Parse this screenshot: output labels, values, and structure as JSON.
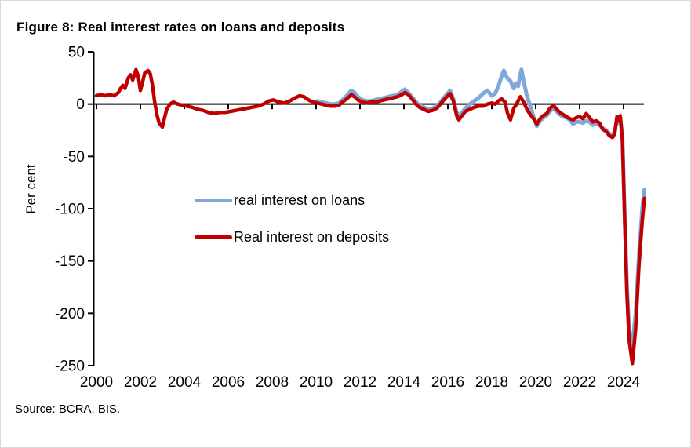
{
  "title": "Figure 8: Real interest rates on loans and deposits",
  "source_note": "Source: BCRA, BIS.",
  "colors": {
    "loans_line": "#7FA7DA",
    "deposits_line": "#C00000",
    "axis": "#000000"
  },
  "chart_data": {
    "type": "line",
    "title": "Figure 8: Real interest rates on loans and deposits",
    "xlabel": "",
    "ylabel": "Per cent",
    "ylim": [
      -250,
      50
    ],
    "ytick_interval": 50,
    "yticks": [
      50,
      0,
      -50,
      -100,
      -150,
      -200,
      -250
    ],
    "xlim": [
      1999.85,
      2024.95
    ],
    "xticks": [
      2000,
      2002,
      2004,
      2006,
      2008,
      2010,
      2012,
      2014,
      2016,
      2018,
      2020,
      2022,
      2024
    ],
    "grid": false,
    "legend_position": "inside-center-left",
    "x_axis_crosses_at": 0,
    "series": [
      {
        "name": "real interest on loans",
        "color": "#7FA7DA",
        "points": [
          [
            2010.05,
            3
          ],
          [
            2010.25,
            2
          ],
          [
            2010.45,
            1
          ],
          [
            2010.65,
            0
          ],
          [
            2010.85,
            0
          ],
          [
            2011.05,
            1
          ],
          [
            2011.2,
            4
          ],
          [
            2011.4,
            8
          ],
          [
            2011.6,
            13
          ],
          [
            2011.75,
            11
          ],
          [
            2011.9,
            7
          ],
          [
            2012.1,
            4
          ],
          [
            2012.3,
            3
          ],
          [
            2012.5,
            3
          ],
          [
            2012.7,
            4
          ],
          [
            2012.9,
            5
          ],
          [
            2013.1,
            6
          ],
          [
            2013.3,
            7
          ],
          [
            2013.5,
            8
          ],
          [
            2013.7,
            9
          ],
          [
            2013.9,
            12
          ],
          [
            2014.05,
            14
          ],
          [
            2014.2,
            11
          ],
          [
            2014.4,
            6
          ],
          [
            2014.55,
            2
          ],
          [
            2014.7,
            -1
          ],
          [
            2014.9,
            -3
          ],
          [
            2015.1,
            -5
          ],
          [
            2015.3,
            -4
          ],
          [
            2015.5,
            -2
          ],
          [
            2015.7,
            3
          ],
          [
            2015.9,
            8
          ],
          [
            2016.1,
            13
          ],
          [
            2016.25,
            5
          ],
          [
            2016.4,
            -8
          ],
          [
            2016.5,
            -11
          ],
          [
            2016.65,
            -8
          ],
          [
            2016.8,
            -4
          ],
          [
            2017.0,
            0
          ],
          [
            2017.2,
            3
          ],
          [
            2017.4,
            6
          ],
          [
            2017.6,
            10
          ],
          [
            2017.8,
            13
          ],
          [
            2018.0,
            8
          ],
          [
            2018.15,
            10
          ],
          [
            2018.3,
            17
          ],
          [
            2018.45,
            27
          ],
          [
            2018.55,
            32
          ],
          [
            2018.7,
            25
          ],
          [
            2018.85,
            22
          ],
          [
            2019.0,
            15
          ],
          [
            2019.1,
            20
          ],
          [
            2019.2,
            17
          ],
          [
            2019.35,
            33
          ],
          [
            2019.45,
            22
          ],
          [
            2019.6,
            8
          ],
          [
            2019.75,
            -2
          ],
          [
            2019.9,
            -12
          ],
          [
            2020.05,
            -21
          ],
          [
            2020.2,
            -16
          ],
          [
            2020.35,
            -13
          ],
          [
            2020.5,
            -11
          ],
          [
            2020.65,
            -7
          ],
          [
            2020.8,
            -4
          ],
          [
            2020.95,
            -7
          ],
          [
            2021.1,
            -10
          ],
          [
            2021.25,
            -12
          ],
          [
            2021.4,
            -13
          ],
          [
            2021.55,
            -15
          ],
          [
            2021.7,
            -19
          ],
          [
            2021.85,
            -17
          ],
          [
            2022.0,
            -17
          ],
          [
            2022.15,
            -18
          ],
          [
            2022.3,
            -16
          ],
          [
            2022.45,
            -17
          ],
          [
            2022.6,
            -20
          ],
          [
            2022.75,
            -18
          ],
          [
            2022.9,
            -20
          ],
          [
            2023.05,
            -23
          ],
          [
            2023.2,
            -25
          ],
          [
            2023.35,
            -28
          ],
          [
            2023.5,
            -30
          ],
          [
            2023.6,
            -26
          ],
          [
            2023.7,
            -14
          ],
          [
            2023.78,
            -18
          ],
          [
            2023.85,
            -13
          ],
          [
            2023.95,
            -32
          ],
          [
            2024.05,
            -105
          ],
          [
            2024.15,
            -172
          ],
          [
            2024.25,
            -215
          ],
          [
            2024.4,
            -232
          ],
          [
            2024.55,
            -200
          ],
          [
            2024.7,
            -145
          ],
          [
            2024.85,
            -100
          ],
          [
            2024.95,
            -82
          ]
        ]
      },
      {
        "name": "Real interest on deposits",
        "color": "#C00000",
        "points": [
          [
            2000.0,
            8
          ],
          [
            2000.2,
            9
          ],
          [
            2000.4,
            8
          ],
          [
            2000.6,
            9
          ],
          [
            2000.8,
            8
          ],
          [
            2001.0,
            11
          ],
          [
            2001.1,
            15
          ],
          [
            2001.2,
            18
          ],
          [
            2001.3,
            15
          ],
          [
            2001.45,
            25
          ],
          [
            2001.55,
            28
          ],
          [
            2001.65,
            23
          ],
          [
            2001.8,
            33
          ],
          [
            2001.9,
            27
          ],
          [
            2002.0,
            13
          ],
          [
            2002.1,
            21
          ],
          [
            2002.2,
            30
          ],
          [
            2002.35,
            32
          ],
          [
            2002.45,
            29
          ],
          [
            2002.55,
            18
          ],
          [
            2002.65,
            2
          ],
          [
            2002.75,
            -10
          ],
          [
            2002.85,
            -18
          ],
          [
            2003.0,
            -22
          ],
          [
            2003.1,
            -13
          ],
          [
            2003.2,
            -5
          ],
          [
            2003.35,
            0
          ],
          [
            2003.5,
            2
          ],
          [
            2003.7,
            0
          ],
          [
            2003.9,
            -1
          ],
          [
            2004.1,
            -2
          ],
          [
            2004.35,
            -3
          ],
          [
            2004.6,
            -5
          ],
          [
            2004.85,
            -6
          ],
          [
            2005.1,
            -8
          ],
          [
            2005.35,
            -9
          ],
          [
            2005.6,
            -8
          ],
          [
            2005.85,
            -8
          ],
          [
            2006.1,
            -7
          ],
          [
            2006.35,
            -6
          ],
          [
            2006.6,
            -5
          ],
          [
            2006.85,
            -4
          ],
          [
            2007.1,
            -3
          ],
          [
            2007.35,
            -2
          ],
          [
            2007.6,
            0
          ],
          [
            2007.85,
            3
          ],
          [
            2008.05,
            4
          ],
          [
            2008.3,
            2
          ],
          [
            2008.55,
            1
          ],
          [
            2008.8,
            3
          ],
          [
            2009.05,
            6
          ],
          [
            2009.25,
            8
          ],
          [
            2009.45,
            7
          ],
          [
            2009.65,
            4
          ],
          [
            2009.85,
            2
          ],
          [
            2010.05,
            1
          ],
          [
            2010.25,
            0
          ],
          [
            2010.45,
            -1
          ],
          [
            2010.65,
            -2
          ],
          [
            2010.85,
            -2
          ],
          [
            2011.05,
            -1
          ],
          [
            2011.2,
            2
          ],
          [
            2011.4,
            5
          ],
          [
            2011.6,
            9
          ],
          [
            2011.75,
            7
          ],
          [
            2011.9,
            4
          ],
          [
            2012.1,
            2
          ],
          [
            2012.3,
            1
          ],
          [
            2012.5,
            2
          ],
          [
            2012.7,
            2
          ],
          [
            2012.9,
            3
          ],
          [
            2013.1,
            4
          ],
          [
            2013.3,
            5
          ],
          [
            2013.5,
            6
          ],
          [
            2013.7,
            7
          ],
          [
            2013.9,
            9
          ],
          [
            2014.05,
            11
          ],
          [
            2014.2,
            9
          ],
          [
            2014.4,
            4
          ],
          [
            2014.55,
            0
          ],
          [
            2014.7,
            -3
          ],
          [
            2014.9,
            -5
          ],
          [
            2015.1,
            -7
          ],
          [
            2015.3,
            -6
          ],
          [
            2015.5,
            -4
          ],
          [
            2015.7,
            1
          ],
          [
            2015.9,
            6
          ],
          [
            2016.1,
            10
          ],
          [
            2016.25,
            3
          ],
          [
            2016.4,
            -11
          ],
          [
            2016.5,
            -15
          ],
          [
            2016.65,
            -11
          ],
          [
            2016.8,
            -7
          ],
          [
            2017.0,
            -5
          ],
          [
            2017.2,
            -3
          ],
          [
            2017.4,
            -2
          ],
          [
            2017.6,
            -2
          ],
          [
            2017.8,
            0
          ],
          [
            2018.0,
            1
          ],
          [
            2018.15,
            0
          ],
          [
            2018.3,
            3
          ],
          [
            2018.45,
            5
          ],
          [
            2018.6,
            2
          ],
          [
            2018.72,
            -9
          ],
          [
            2018.85,
            -15
          ],
          [
            2019.0,
            -4
          ],
          [
            2019.1,
            -1
          ],
          [
            2019.2,
            3
          ],
          [
            2019.3,
            7
          ],
          [
            2019.45,
            2
          ],
          [
            2019.6,
            -5
          ],
          [
            2019.75,
            -10
          ],
          [
            2019.9,
            -14
          ],
          [
            2020.05,
            -19
          ],
          [
            2020.2,
            -14
          ],
          [
            2020.35,
            -11
          ],
          [
            2020.5,
            -9
          ],
          [
            2020.65,
            -4
          ],
          [
            2020.8,
            -1
          ],
          [
            2020.95,
            -5
          ],
          [
            2021.1,
            -8
          ],
          [
            2021.25,
            -10
          ],
          [
            2021.4,
            -12
          ],
          [
            2021.55,
            -14
          ],
          [
            2021.7,
            -15
          ],
          [
            2021.85,
            -13
          ],
          [
            2022.0,
            -12
          ],
          [
            2022.15,
            -14
          ],
          [
            2022.3,
            -9
          ],
          [
            2022.45,
            -13
          ],
          [
            2022.6,
            -17
          ],
          [
            2022.75,
            -16
          ],
          [
            2022.9,
            -18
          ],
          [
            2023.05,
            -24
          ],
          [
            2023.2,
            -26
          ],
          [
            2023.35,
            -30
          ],
          [
            2023.5,
            -32
          ],
          [
            2023.6,
            -28
          ],
          [
            2023.7,
            -12
          ],
          [
            2023.78,
            -16
          ],
          [
            2023.85,
            -11
          ],
          [
            2023.95,
            -35
          ],
          [
            2024.05,
            -110
          ],
          [
            2024.15,
            -180
          ],
          [
            2024.25,
            -225
          ],
          [
            2024.4,
            -248
          ],
          [
            2024.55,
            -215
          ],
          [
            2024.7,
            -155
          ],
          [
            2024.85,
            -112
          ],
          [
            2024.95,
            -90
          ]
        ]
      }
    ]
  }
}
